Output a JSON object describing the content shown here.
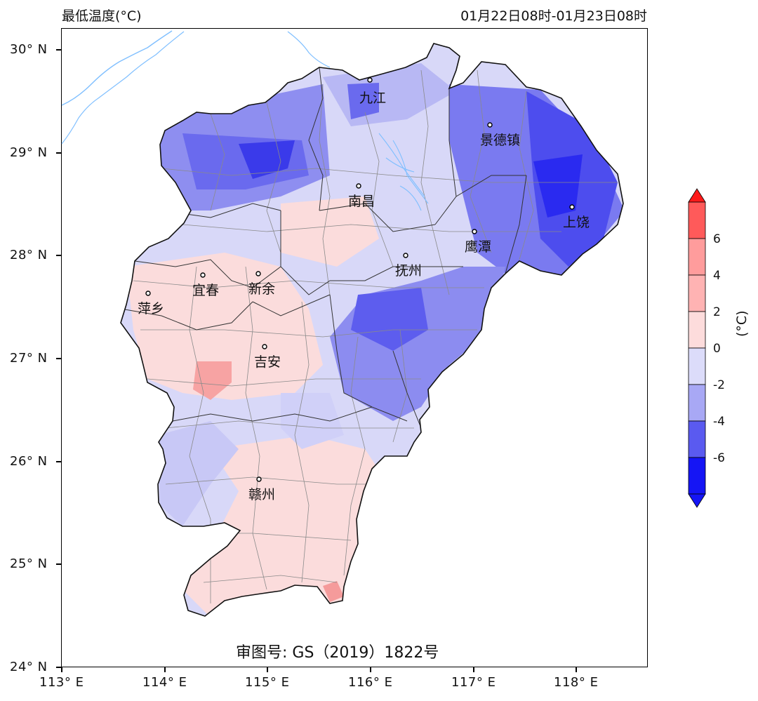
{
  "header": {
    "title": "最低温度(°C)",
    "period": "01月22日08时-01月23日08时"
  },
  "axes": {
    "lat_ticks": [
      "30° N",
      "29° N",
      "28° N",
      "27° N",
      "26° N",
      "25° N",
      "24° N"
    ],
    "lon_ticks": [
      "113° E",
      "114° E",
      "115° E",
      "116° E",
      "117° E",
      "118° E"
    ]
  },
  "cities": [
    {
      "name": "九江"
    },
    {
      "name": "景德镇"
    },
    {
      "name": "南昌"
    },
    {
      "name": "上饶"
    },
    {
      "name": "鹰潭"
    },
    {
      "name": "抚州"
    },
    {
      "name": "宜春"
    },
    {
      "name": "新余"
    },
    {
      "name": "萍乡"
    },
    {
      "name": "吉安"
    },
    {
      "name": "赣州"
    }
  ],
  "review_number": "审图号: GS（2019）1822号",
  "colorbar": {
    "unit": "(°C)",
    "levels": [
      "6",
      "4",
      "2",
      "0",
      "-2",
      "-4",
      "-6"
    ],
    "colors": {
      "gt6": "#ff1a1a",
      "4to6": "#ff5a5a",
      "2to4": "#ff9c9c",
      "0to2": "#fddcdc",
      "m2to0": "#dcdcfa",
      "m4tom2": "#a8a8f5",
      "m6tom4": "#5a5af0",
      "ltm6": "#1515f5"
    }
  }
}
